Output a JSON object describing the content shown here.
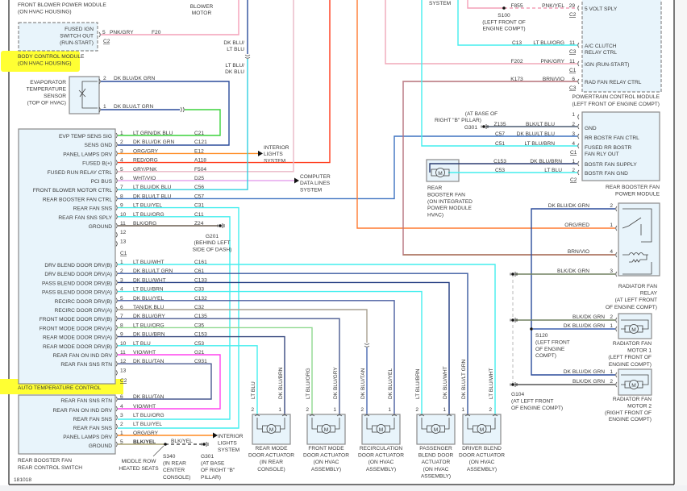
{
  "drawing_id": "181018",
  "colors": {
    "highlight": "#ffff33",
    "module_fill": "#e8f4fb",
    "module_border": "#8a8a8a",
    "text": "#3a3a3a"
  },
  "motor_symbol": "M",
  "top": {
    "blower_module": [
      "FRONT BLOWER POWER MODULE",
      "(ON HVAC HOUSING)"
    ],
    "blower_motor": [
      "BLOWER",
      "MOTOR"
    ],
    "wire_upper": [
      "DK BLU/",
      "LT BLU"
    ],
    "wire_lower": [
      "LT BLU/",
      "DK BLU"
    ],
    "system": "SYSTEM"
  },
  "bcm": {
    "lines": [
      "FUSED IGN",
      "SWITCH OUT",
      "(RUN-START)"
    ],
    "title": [
      "BODY CONTROL MODULE",
      "(ON HVAC HOUSING)"
    ],
    "pin": "5",
    "wire": "PNK/GRY",
    "circuit": "F20",
    "connector": "C2",
    "wire_color": "#f4a0b8"
  },
  "evap": {
    "title": [
      "EVAPORATOR",
      "TEMPERATURE",
      "SENSOR",
      "(TOP OF HVAC)"
    ],
    "pins": [
      {
        "pin": "2",
        "wire": "DK BLU/DK GRN"
      },
      {
        "pin": "1",
        "wire": "DK BLU/LT GRN"
      }
    ]
  },
  "atc": {
    "title": "AUTO TEMPERATURE CONTROL",
    "connector1": "C1",
    "connector2": "C2",
    "group1": [
      {
        "pin": "1",
        "func": "EVP TEMP SENS SIG",
        "wire": "LT GRN/DK BLU",
        "circuit": "C21",
        "color": "#3cd23c"
      },
      {
        "pin": "2",
        "func": "SENS GND",
        "wire": "DK BLU/DK GRN",
        "circuit": "C121",
        "color": "#2b4c9b"
      },
      {
        "pin": "3",
        "func": "PANEL LAMPS DRV",
        "wire": "ORG/GRY",
        "circuit": "E12",
        "color": "#ff8a20"
      },
      {
        "pin": "4",
        "func": "FUSED B(+)",
        "wire": "RED/ORG",
        "circuit": "A118",
        "color": "#ff3a1a"
      },
      {
        "pin": "5",
        "func": "FUSED RUN RELAY CTRL",
        "wire": "GRY/PNK",
        "circuit": "F504",
        "color": "#eab8c6"
      },
      {
        "pin": "6",
        "func": "PCI BUS",
        "wire": "WHT/VIO",
        "circuit": "D25",
        "color": "#e6a6ee"
      },
      {
        "pin": "7",
        "func": "FRONT BLOWER MOTOR CTRL",
        "wire": "LT BLU/DK BLU",
        "circuit": "C56",
        "color": "#30d0e0"
      },
      {
        "pin": "8",
        "func": "REAR BOOSTER FAN CTRL",
        "wire": "DK BLU/LT BLU",
        "circuit": "C57",
        "color": "#3d72c0"
      },
      {
        "pin": "9",
        "func": "REAR FAN SNS",
        "wire": "LT BLU/YEL",
        "circuit": "C31",
        "color": "#44eeee"
      },
      {
        "pin": "10",
        "func": "REAR FAN SNS SPLY",
        "wire": "LT BLU/ORG",
        "circuit": "C11",
        "color": "#44eeee"
      },
      {
        "pin": "11",
        "func": "GROUND",
        "wire": "BLK/ORG",
        "circuit": "Z24",
        "color": "#6b5e50"
      },
      {
        "pin": "12",
        "func": "",
        "wire": "",
        "circuit": "",
        "color": ""
      },
      {
        "pin": "13",
        "func": "",
        "wire": "",
        "circuit": "",
        "color": ""
      }
    ],
    "group2": [
      {
        "pin": "1",
        "func": "DRV BLEND DOOR DRV(B)",
        "wire": "LT BLU/WHT",
        "circuit": "C161",
        "color": "#44eeee"
      },
      {
        "pin": "2",
        "func": "DRV BLEND DOOR DRV(A)",
        "wire": "DK BLU/LT GRN",
        "circuit": "C61",
        "color": "#3a5aa0"
      },
      {
        "pin": "3",
        "func": "PASS BLEND DOOR DRV(B)",
        "wire": "DK BLU/WHT",
        "circuit": "C133",
        "color": "#203a80"
      },
      {
        "pin": "4",
        "func": "PASS BLEND DOOR DRV(A)",
        "wire": "LT BLU/BRN",
        "circuit": "C33",
        "color": "#44e6e6"
      },
      {
        "pin": "5",
        "func": "RECIRC DOOR DRV(B)",
        "wire": "DK BLU/YEL",
        "circuit": "C132",
        "color": "#4a5ea0"
      },
      {
        "pin": "6",
        "func": "RECIRC DOOR DRV(A)",
        "wire": "TAN/DK BLU",
        "circuit": "C32",
        "color": "#a8a090"
      },
      {
        "pin": "7",
        "func": "FRONT MODE DOOR DRV(B)",
        "wire": "DK BLU/GRY",
        "circuit": "C135",
        "color": "#4a5a90"
      },
      {
        "pin": "8",
        "func": "FRONT MODE DOOR DRV(A)",
        "wire": "LT BLU/ORG",
        "circuit": "C35",
        "color": "#44eeee"
      },
      {
        "pin": "9",
        "func": "REAR MODE DOOR DRV(A)",
        "wire": "DK BLU/BRN",
        "circuit": "C153",
        "color": "#3a4a80"
      },
      {
        "pin": "10",
        "func": "REAR MODE DOOR DRV(B)",
        "wire": "LT BLU",
        "circuit": "C53",
        "color": "#44eeee"
      },
      {
        "pin": "11",
        "func": "REAR FAN ON IND DRV",
        "wire": "VIO/WHT",
        "circuit": "G21",
        "color": "#ff44ee"
      },
      {
        "pin": "12",
        "func": "REAR FAN SNS RTN",
        "wire": "DK BLU/TAN",
        "circuit": "C931",
        "color": "#4a5a90"
      },
      {
        "pin": "13",
        "func": "",
        "wire": "",
        "circuit": "",
        "color": ""
      }
    ]
  },
  "destinations": {
    "interior_lights": [
      "INTERIOR",
      "LIGHTS",
      "SYSTEM"
    ],
    "data_lines": [
      "COMPUTER",
      "DATA LINES",
      "SYSTEM"
    ],
    "g201": [
      "G201",
      "(BEHIND LEFT",
      "SIDE OF DASH)"
    ]
  },
  "rear_switch": {
    "title": [
      "REAR BOOSTER FAN",
      "REAR CONTROL SWITCH"
    ],
    "pins": [
      {
        "pin": "6",
        "func": "REAR FAN SNS RTN",
        "wire": "DK BLU/TAN"
      },
      {
        "pin": "4",
        "func": "REAR FAN ON IND DRV",
        "wire": "VIO/WHT"
      },
      {
        "pin": "3",
        "func": "REAR FAN SNS",
        "wire": "LT BLU/ORG"
      },
      {
        "pin": "2",
        "func": "REAR FAN SNS",
        "wire": "LT BLU/YEL"
      },
      {
        "pin": "1",
        "func": "PANEL LAMPS DRV",
        "wire": "ORG/GRY"
      },
      {
        "pin": "5",
        "func": "GROUND",
        "wire": "BLK/YEL"
      }
    ],
    "ground_wire": "BLK/YEL",
    "heated_seats": [
      "MIDDLE ROW",
      "HEATED SEATS"
    ],
    "s340": [
      "S340",
      "(IN REAR",
      "CENTER",
      "CONSOLE)"
    ],
    "g301": [
      "G301",
      "(AT BASE",
      "OF RIGHT \"B\"",
      "PILLAR)"
    ],
    "interior_lights": [
      "INTERIOR",
      "LIGHTS",
      "SYSTEM"
    ]
  },
  "actuators": [
    {
      "title": [
        "REAR MODE",
        "DOOR ACTUATOR",
        "(IN REAR",
        "CONSOLE)"
      ],
      "left": {
        "pin": "2",
        "wire": "LT BLU"
      },
      "right": {
        "pin": "1",
        "wire": "DK BLU/BRN"
      }
    },
    {
      "title": [
        "FRONT MODE",
        "DOOR ACTUATOR",
        "(ON HVAC",
        "ASSEMBLY)"
      ],
      "left": {
        "pin": "2",
        "wire": "LT BLU/ORG"
      },
      "right": {
        "pin": "1",
        "wire": "DK BLU/GRY"
      }
    },
    {
      "title": [
        "RECIRCULATION",
        "DOOR ACTUATOR",
        "(ON HVAC",
        "ASSEMBLY)"
      ],
      "left": {
        "pin": "2",
        "wire": "DK BLU/TAN"
      },
      "right": {
        "pin": "1",
        "wire": "DK BLU/YEL"
      }
    },
    {
      "title": [
        "PASSENGER",
        "BLEND DOOR",
        "ACTUATOR",
        "(ON HVAC",
        "ASSEMBLY)"
      ],
      "left": {
        "pin": "2",
        "wire": "LT BLU/BRN"
      },
      "right": {
        "pin": "1",
        "wire": "DK BLU/WHT"
      }
    },
    {
      "title": [
        "DRIVER BLEND",
        "DOOR ACTUATOR",
        "(ON HVAC",
        "ASSEMBLY)"
      ],
      "left": {
        "pin": "1",
        "wire": "DK BLU/LT GRN"
      },
      "right": {
        "pin": "2",
        "wire": "LT BLU/WHT"
      }
    }
  ],
  "pcm": {
    "title": [
      "POWERTRAIN CONTROL MODULE",
      "(LEFT FRONT OF ENGINE COMPT)"
    ],
    "rows": [
      {
        "circuit": "F855",
        "wire": "PNK/YEL",
        "pin": "29",
        "connector": "C2",
        "func": [
          "5 VOLT SPLY"
        ]
      },
      {
        "circuit": "C13",
        "wire": "LT BLU/ORG",
        "pin": "11",
        "connector": "C3",
        "func": [
          "A/C CLUTCH",
          "RELAY CTRL"
        ]
      },
      {
        "circuit": "F202",
        "wire": "PNK/GRY",
        "pin": "11",
        "connector": "C1",
        "func": [
          "IGN (RUN-START)"
        ]
      },
      {
        "circuit": "K173",
        "wire": "BRN/VIO",
        "pin": "6",
        "connector": "C3",
        "func": [
          "RAD FAN RELAY CTRL"
        ]
      }
    ],
    "s100": [
      "S100",
      "(LEFT FRONT OF",
      "ENGINE COMPT)"
    ]
  },
  "booster_module": {
    "title": [
      "REAR BOOSTER FAN",
      "POWER MODULE"
    ],
    "c1_rows": [
      {
        "pin": "1",
        "circuit": "",
        "wire": "",
        "func": []
      },
      {
        "pin": "2",
        "circuit": "Z135",
        "wire": "BLK/LT BLU",
        "func": [
          "GND"
        ]
      },
      {
        "pin": "3",
        "circuit": "C57",
        "wire": "DK BLU/LT BLU",
        "func": [
          "RR BOSTR FAN CTRL"
        ]
      },
      {
        "pin": "4",
        "circuit": "C51",
        "wire": "LT BLU/BRN",
        "func": [
          "FUSED RR BOSTR",
          "FAN RLY OUT"
        ]
      }
    ],
    "c1_label": "C1",
    "c2_rows": [
      {
        "pin": "1",
        "circuit": "C153",
        "wire": "DK BLU/BRN",
        "func": [
          "BOSTR FAN SUPPLY"
        ]
      },
      {
        "pin": "2",
        "circuit": "C53",
        "wire": "LT BLU",
        "func": [
          "BOSTR FAN GND"
        ]
      }
    ],
    "c2_label": "C2",
    "g301": [
      "(AT BASE OF",
      "RIGHT \"B\" PILLAR)",
      "G301"
    ],
    "fan_title": [
      "REAR",
      "BOOSTER FAN",
      "(ON INTEGRATED",
      "POWER MODULE",
      "HVAC)"
    ]
  },
  "relay": {
    "title": [
      "RADIATOR FAN",
      "RELAY",
      "(AT LEFT FRONT",
      "OF ENGINE COMPT)"
    ],
    "rows": [
      {
        "pin": "2",
        "wire": "DK BLU/DK GRN"
      },
      {
        "pin": "1",
        "wire": "ORG/RED"
      },
      {
        "pin": "4",
        "wire": "BRN/VIO"
      },
      {
        "pin": "3",
        "wire": "BLK/DK GRN"
      }
    ]
  },
  "motor1": {
    "title": [
      "RADIATOR FAN",
      "MOTOR 1",
      "(LEFT FRONT OF",
      "ENGINE COMPT)"
    ],
    "rows": [
      {
        "pin": "2",
        "wire": "BLK/DK GRN"
      },
      {
        "pin": "1",
        "wire": "DK BLU/DK GRN"
      }
    ]
  },
  "motor2": {
    "title": [
      "RADIATOR FAN",
      "MOTOR 2",
      "(RIGHT FRONT OF",
      "ENGINE COMPT)"
    ],
    "rows": [
      {
        "pin": "1",
        "wire": "DK BLU/DK GRN"
      },
      {
        "pin": "2",
        "wire": "BLK/DK GRN"
      }
    ]
  },
  "s120": [
    "S120",
    "(LEFT FRONT",
    "OF ENGINE",
    "COMPT)"
  ],
  "g104": [
    "G104",
    "(AT LEFT FRONT",
    "OF ENGINE COMPT)"
  ]
}
